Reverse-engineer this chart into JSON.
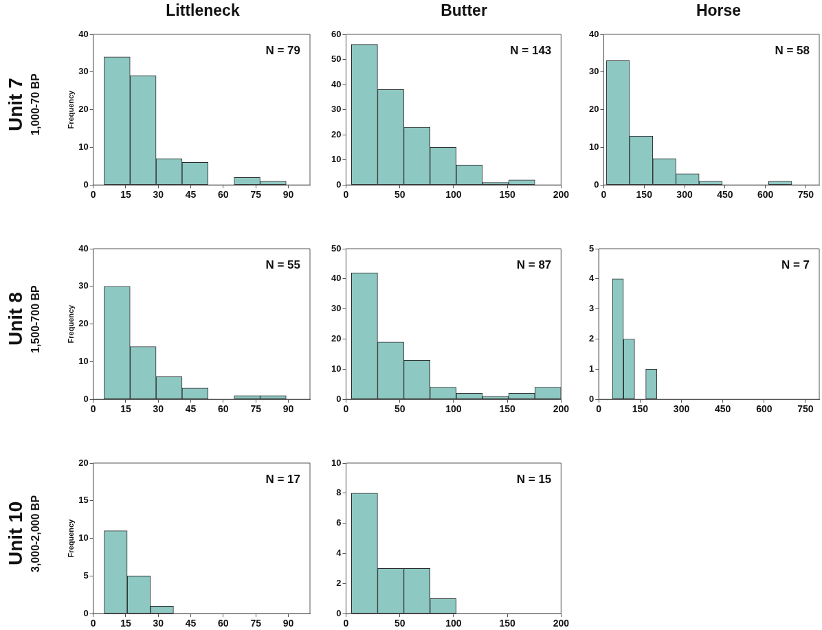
{
  "chart_data": [
    {
      "type": "histogram",
      "title": "Littleneck",
      "ylabel": "Frequency",
      "annotations": [
        "Unit 7",
        "1,000-70 BP",
        "N = 79"
      ],
      "color": "#8ec8c3",
      "bins": [
        5,
        17,
        29,
        41,
        53,
        65,
        77,
        89
      ],
      "values": [
        34,
        29,
        7,
        6,
        0,
        2,
        1
      ],
      "xlim": [
        0,
        100
      ],
      "xticks": [
        0,
        15,
        30,
        45,
        60,
        75,
        90
      ],
      "ylim": [
        0,
        40
      ],
      "yticks": [
        0,
        10,
        20,
        30,
        40
      ]
    },
    {
      "type": "histogram",
      "title": "Butter",
      "annotations": [
        "N = 143"
      ],
      "color": "#8ec8c3",
      "bins": [
        5,
        29.4,
        53.8,
        78.1,
        102.5,
        126.9,
        151.3,
        175.6
      ],
      "values": [
        56,
        38,
        23,
        15,
        8,
        1,
        2
      ],
      "xlim": [
        0,
        200
      ],
      "xticks": [
        0,
        50,
        100,
        150,
        200
      ],
      "ylim": [
        0,
        60
      ],
      "yticks": [
        0,
        10,
        20,
        30,
        40,
        50,
        60
      ]
    },
    {
      "type": "histogram",
      "title": "Horse",
      "annotations": [
        "N = 58"
      ],
      "color": "#8ec8c3",
      "bins": [
        10,
        96,
        182,
        268,
        354,
        440,
        526,
        612,
        698
      ],
      "values": [
        33,
        13,
        7,
        3,
        1,
        0,
        0,
        1
      ],
      "xlim": [
        0,
        800
      ],
      "xticks": [
        0,
        150,
        300,
        450,
        600,
        750
      ],
      "ylim": [
        0,
        40
      ],
      "yticks": [
        0,
        10,
        20,
        30,
        40
      ]
    },
    {
      "type": "histogram",
      "ylabel": "Frequency",
      "annotations": [
        "Unit 8",
        "1,500-700 BP",
        "N = 55"
      ],
      "color": "#8ec8c3",
      "bins": [
        5,
        17,
        29,
        41,
        53,
        65,
        77,
        89
      ],
      "values": [
        30,
        14,
        6,
        3,
        0,
        1,
        1
      ],
      "xlim": [
        0,
        100
      ],
      "xticks": [
        0,
        15,
        30,
        45,
        60,
        75,
        90
      ],
      "ylim": [
        0,
        40
      ],
      "yticks": [
        0,
        10,
        20,
        30,
        40
      ]
    },
    {
      "type": "histogram",
      "annotations": [
        "N = 87"
      ],
      "color": "#8ec8c3",
      "bins": [
        5,
        29.4,
        53.8,
        78.1,
        102.5,
        126.9,
        151.3,
        175.6,
        200
      ],
      "values": [
        42,
        19,
        13,
        4,
        2,
        1,
        2,
        4
      ],
      "xlim": [
        0,
        200
      ],
      "xticks": [
        0,
        50,
        100,
        150,
        200
      ],
      "ylim": [
        0,
        50
      ],
      "yticks": [
        0,
        10,
        20,
        30,
        40,
        50
      ]
    },
    {
      "type": "histogram",
      "annotations": [
        "N = 7"
      ],
      "color": "#8ec8c3",
      "bins": [
        49,
        90,
        130,
        170,
        211
      ],
      "values": [
        4,
        2,
        0,
        1
      ],
      "xlim": [
        0,
        800
      ],
      "xticks": [
        0,
        150,
        300,
        450,
        600,
        750
      ],
      "ylim": [
        0,
        5
      ],
      "yticks": [
        0,
        1,
        2,
        3,
        4,
        5
      ]
    },
    {
      "type": "histogram",
      "ylabel": "Frequency",
      "annotations": [
        "Unit 10",
        "3,000-2,000 BP",
        "N = 17"
      ],
      "color": "#8ec8c3",
      "bins": [
        5,
        15.7,
        26.4,
        37
      ],
      "values": [
        11,
        5,
        1
      ],
      "xlim": [
        0,
        100
      ],
      "xticks": [
        0,
        15,
        30,
        45,
        60,
        75,
        90
      ],
      "ylim": [
        0,
        20
      ],
      "yticks": [
        0,
        5,
        10,
        15,
        20
      ]
    },
    {
      "type": "histogram",
      "annotations": [
        "N = 15"
      ],
      "color": "#8ec8c3",
      "bins": [
        5,
        29.4,
        53.8,
        78.1,
        102.5
      ],
      "values": [
        8,
        3,
        3,
        1
      ],
      "xlim": [
        0,
        200
      ],
      "xticks": [
        0,
        50,
        100,
        150,
        200
      ],
      "ylim": [
        0,
        10
      ],
      "yticks": [
        0,
        2,
        4,
        6,
        8,
        10
      ]
    }
  ]
}
